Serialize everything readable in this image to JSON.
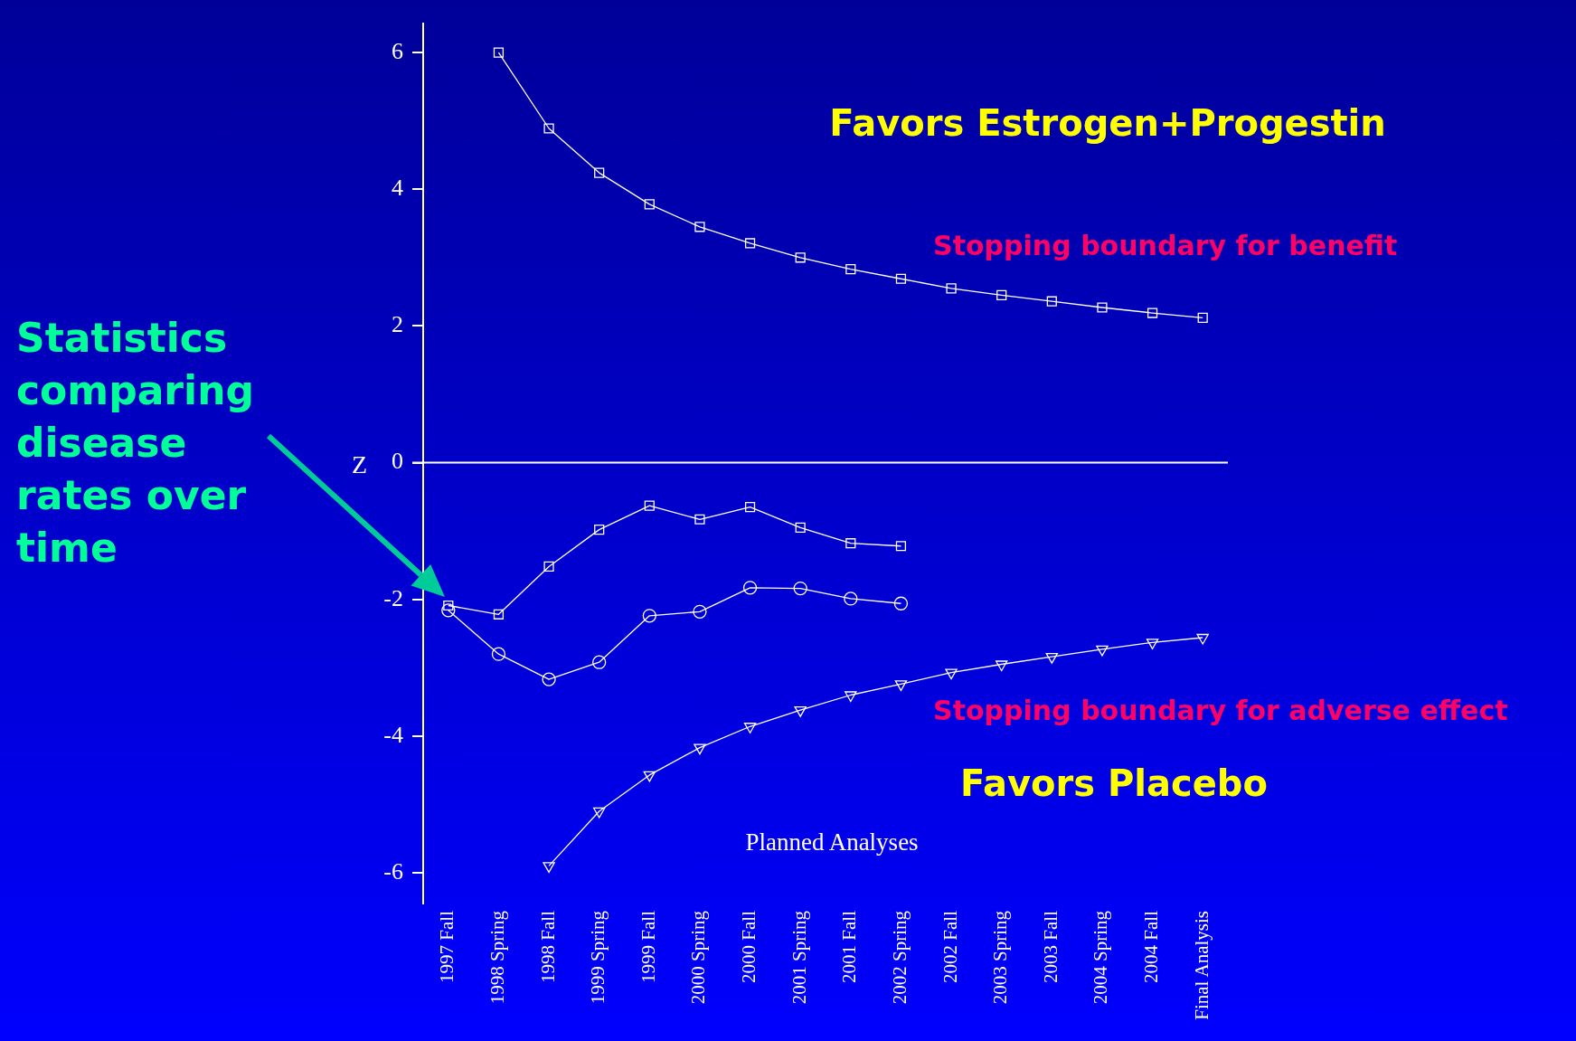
{
  "chart_data": {
    "type": "line",
    "xlabel": "Planned Analyses",
    "ylabel": "Z",
    "categories": [
      "1997 Fall",
      "1998 Spring",
      "1998 Fall",
      "1999 Spring",
      "1999 Fall",
      "2000 Spring",
      "2000 Fall",
      "2001 Spring",
      "2001 Fall",
      "2002 Spring",
      "2002 Fall",
      "2003 Spring",
      "2003 Fall",
      "2004 Spring",
      "2004 Fall",
      "Final Analysis"
    ],
    "series": [
      {
        "name": "Stopping boundary for benefit",
        "color": "#ffffff",
        "marker": "square",
        "values": [
          null,
          6.0,
          4.89,
          4.24,
          3.78,
          3.45,
          3.21,
          3.0,
          2.83,
          2.69,
          2.55,
          2.45,
          2.36,
          2.27,
          2.19,
          2.12
        ]
      },
      {
        "color": "#ffffff",
        "marker": "square",
        "values": [
          -2.09,
          -2.22,
          -1.52,
          -0.98,
          -0.63,
          -0.83,
          -0.65,
          -0.95,
          -1.18,
          -1.22,
          null,
          null,
          null,
          null,
          null,
          null
        ]
      },
      {
        "color": "#ffffff",
        "marker": "circle",
        "values": [
          -2.16,
          -2.8,
          -3.17,
          -2.92,
          -2.24,
          -2.18,
          -1.83,
          -1.84,
          -1.99,
          -2.06,
          null,
          null,
          null,
          null,
          null,
          null
        ]
      },
      {
        "name": "Stopping boundary for adverse effect",
        "color": "#ffffff",
        "marker": "triangle",
        "values": [
          null,
          null,
          -5.9,
          -5.1,
          -4.57,
          -4.17,
          -3.86,
          -3.62,
          -3.4,
          -3.24,
          -3.07,
          -2.95,
          -2.84,
          -2.73,
          -2.63,
          -2.56
        ]
      }
    ],
    "ylim": [
      -6.45,
      6.43
    ],
    "yticks": [
      -6,
      -4,
      -2,
      0,
      2,
      4,
      6
    ],
    "ref_lines": [
      {
        "axis": "y",
        "value": 0,
        "color": "#ffffff"
      }
    ],
    "annotations": [
      "Favors Estrogen+Progestin",
      "Favors Placebo",
      "Statistics comparing disease rates over time"
    ],
    "grid": false,
    "legend": false
  }
}
